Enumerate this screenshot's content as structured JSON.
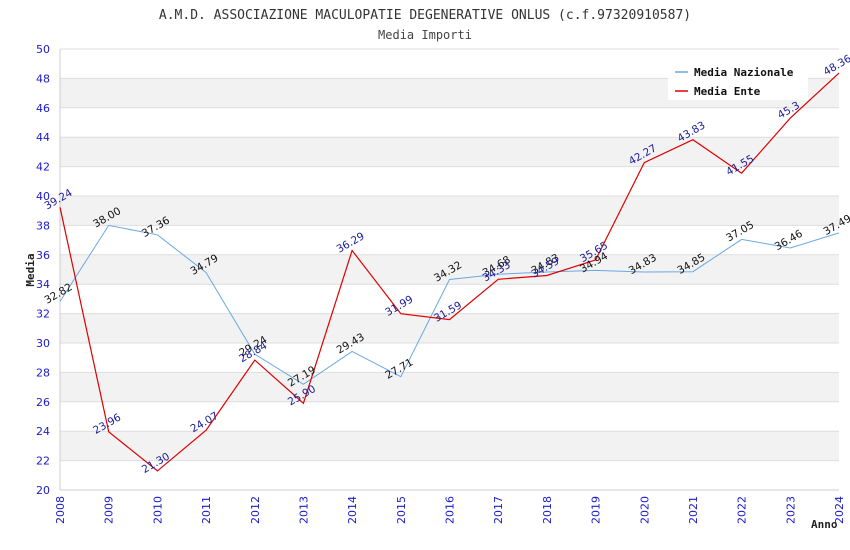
{
  "chart_data": {
    "type": "line",
    "title": "A.M.D. ASSOCIAZIONE MACULOPATIE DEGENERATIVE ONLUS (c.f.97320910587)",
    "subtitle": "Media Importi",
    "xlabel": "Anno",
    "ylabel": "Media",
    "x": [
      "2008",
      "2009",
      "2010",
      "2011",
      "2012",
      "2013",
      "2014",
      "2015",
      "2016",
      "2017",
      "2018",
      "2019",
      "2020",
      "2021",
      "2022",
      "2023",
      "2024"
    ],
    "ylim": [
      20,
      50
    ],
    "yticks": [
      20,
      22,
      24,
      26,
      28,
      30,
      32,
      34,
      36,
      38,
      40,
      42,
      44,
      46,
      48,
      50
    ],
    "grid": true,
    "legend_position": "top-right",
    "series": [
      {
        "name": "Media Nazionale",
        "color": "#6aa9e0",
        "values": [
          32.82,
          38.0,
          37.36,
          34.79,
          29.24,
          27.19,
          29.43,
          27.71,
          34.32,
          34.68,
          34.83,
          34.94,
          34.83,
          34.85,
          37.05,
          36.46,
          37.49
        ],
        "labels": [
          "32.82",
          "38.00",
          "37.36",
          "34.79",
          "29.24",
          "27.19",
          "29.43",
          "27.71",
          "34.32",
          "34.68",
          "34.83",
          "34.94",
          "34.83",
          "34.85",
          "37.05",
          "36.46",
          "37.49"
        ]
      },
      {
        "name": "Media Ente",
        "color": "#dd0000",
        "values": [
          39.24,
          23.96,
          21.3,
          24.07,
          28.84,
          25.9,
          36.29,
          31.99,
          31.59,
          34.33,
          34.59,
          35.65,
          42.27,
          43.83,
          41.55,
          45.3,
          48.36
        ],
        "labels": [
          "39.24",
          "23.96",
          "21.30",
          "24.07",
          "28.84",
          "25.90",
          "36.29",
          "31.99",
          "31.59",
          "34.33",
          "34.59",
          "35.65",
          "42.27",
          "43.83",
          "41.55",
          "45.3",
          "48.36"
        ]
      }
    ]
  }
}
